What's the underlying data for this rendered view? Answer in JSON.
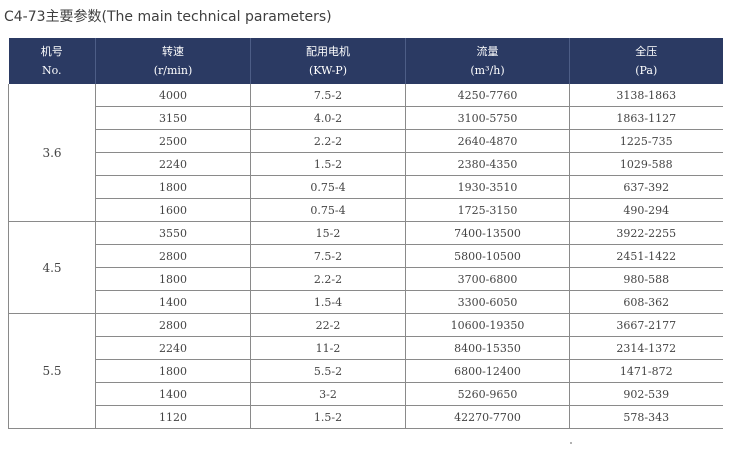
{
  "title": "C4-73主要参数(The main technical parameters)",
  "headers": [
    {
      "cn": "机号",
      "en": "No."
    },
    {
      "cn": "转速",
      "en": "(r/min)"
    },
    {
      "cn": "配用电机",
      "en": "(KW-P)"
    },
    {
      "cn": "流量",
      "en": "(m³/h)"
    },
    {
      "cn": "全压",
      "en": "(Pa)"
    }
  ],
  "groups": [
    {
      "model": "3.6",
      "rows": [
        [
          "4000",
          "7.5-2",
          "4250-7760",
          "3138-1863"
        ],
        [
          "3150",
          "4.0-2",
          "3100-5750",
          "1863-1127"
        ],
        [
          "2500",
          "2.2-2",
          "2640-4870",
          "1225-735"
        ],
        [
          "2240",
          "1.5-2",
          "2380-4350",
          "1029-588"
        ],
        [
          "1800",
          "0.75-4",
          "1930-3510",
          "637-392"
        ],
        [
          "1600",
          "0.75-4",
          "1725-3150",
          "490-294"
        ]
      ]
    },
    {
      "model": "4.5",
      "rows": [
        [
          "3550",
          "15-2",
          "7400-13500",
          "3922-2255"
        ],
        [
          "2800",
          "7.5-2",
          "5800-10500",
          "2451-1422"
        ],
        [
          "1800",
          "2.2-2",
          "3700-6800",
          "980-588"
        ],
        [
          "1400",
          "1.5-4",
          "3300-6050",
          "608-362"
        ]
      ]
    },
    {
      "model": "5.5",
      "rows": [
        [
          "2800",
          "22-2",
          "10600-19350",
          "3667-2177"
        ],
        [
          "2240",
          "11-2",
          "8400-15350",
          "2314-1372"
        ],
        [
          "1800",
          "5.5-2",
          "6800-12400",
          "1471-872"
        ],
        [
          "1400",
          "3-2",
          "5260-9650",
          "902-539"
        ],
        [
          "1120",
          "1.5-2",
          "42270-7700",
          "578-343"
        ]
      ]
    }
  ]
}
